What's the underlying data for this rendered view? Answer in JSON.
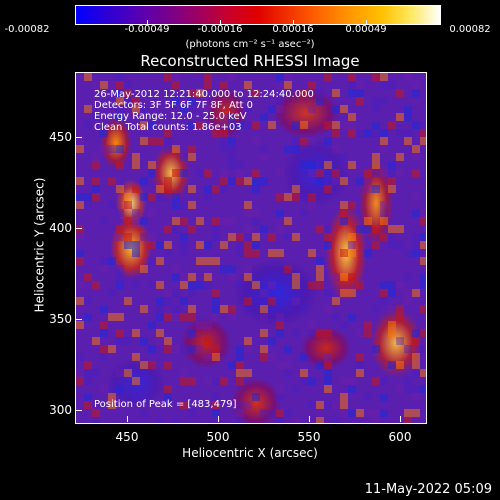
{
  "colorbar": {
    "ticks": [
      "-0.00082",
      "-0.00049",
      "-0.00016",
      "0.00016",
      "0.00049",
      "0.00082"
    ],
    "units": "(photons cm⁻² s⁻¹ asec⁻²)"
  },
  "title": "Reconstructed RHESSI Image",
  "info": {
    "line1": "26-May-2012 12:21:40.000 to 12:24:40.000",
    "line2": "Detectors: 3F 5F 6F 7F 8F, Att 0",
    "line3": "Energy Range: 12.0 - 25.0 keV",
    "line4": "Clean    Total counts: 1.86e+03"
  },
  "peak": "Position of Peak = [483,479]",
  "axes": {
    "xlabel": "Heliocentric X (arcsec)",
    "ylabel": "Heliocentric Y (arcsec)",
    "xticks": [
      "450",
      "500",
      "550",
      "600"
    ],
    "yticks": [
      "450",
      "400",
      "350",
      "300"
    ]
  },
  "timestamp": "11-May-2022 05:09"
}
